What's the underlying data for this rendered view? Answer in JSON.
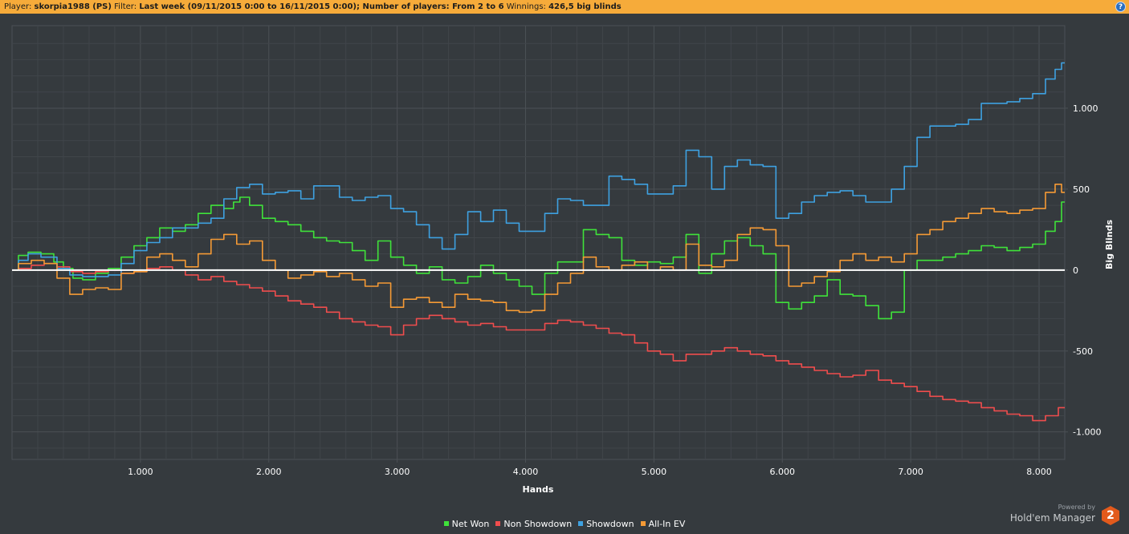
{
  "header": {
    "player_label": "Player:",
    "player_value": "skorpia1988 (PS)",
    "filter_label": "Filter:",
    "filter_value": "Last week (09/11/2015 0:00 to 16/11/2015 0:00); Number of players: From 2 to 6",
    "winnings_label": "Winnings:",
    "winnings_value": "426,5 big blinds",
    "help_icon": "?"
  },
  "branding": {
    "powered_by": "Powered by",
    "product": "Hold'em Manager",
    "logo_text": "2"
  },
  "colors": {
    "background": "#353a3e",
    "grid": "#4b5055",
    "zero_line": "#ffffff",
    "header_bar": "#f6ab3a"
  },
  "chart_data": {
    "type": "line",
    "xlabel": "Hands",
    "ylabel": "Big Blinds",
    "xlim": [
      0,
      8200
    ],
    "ylim": [
      -1170,
      1510
    ],
    "x_ticks": [
      1000,
      2000,
      3000,
      4000,
      5000,
      6000,
      7000,
      8000
    ],
    "x_tick_labels": [
      "1.000",
      "2.000",
      "3.000",
      "4.000",
      "5.000",
      "6.000",
      "7.000",
      "8.000"
    ],
    "y_ticks": [
      1000,
      500,
      0,
      -500,
      -1000
    ],
    "y_tick_labels": [
      "1.000",
      "500",
      "0",
      "-500",
      "-1.000"
    ],
    "grid": true,
    "legend_position": "bottom-center",
    "series": [
      {
        "name": "Net Won",
        "color": "#3fe23a",
        "x": [
          0,
          100,
          150,
          300,
          350,
          450,
          500,
          600,
          700,
          800,
          900,
          1000,
          1100,
          1200,
          1300,
          1400,
          1500,
          1600,
          1700,
          1750,
          1800,
          1900,
          2000,
          2100,
          2200,
          2300,
          2400,
          2500,
          2600,
          2700,
          2800,
          2900,
          3000,
          3100,
          3200,
          3300,
          3400,
          3500,
          3600,
          3700,
          3800,
          3900,
          4000,
          4100,
          4200,
          4300,
          4400,
          4500,
          4600,
          4700,
          4800,
          4900,
          5000,
          5100,
          5200,
          5300,
          5400,
          5500,
          5600,
          5700,
          5800,
          5900,
          6000,
          6100,
          6200,
          6300,
          6400,
          6500,
          6600,
          6700,
          6800,
          6900,
          7000,
          7100,
          7200,
          7300,
          7400,
          7500,
          7600,
          7700,
          7800,
          7900,
          8000,
          8100,
          8150,
          8200
        ],
        "y": [
          0,
          90,
          110,
          100,
          50,
          10,
          -50,
          -60,
          -20,
          10,
          80,
          150,
          200,
          260,
          240,
          280,
          350,
          400,
          380,
          420,
          450,
          400,
          320,
          300,
          280,
          240,
          200,
          180,
          170,
          120,
          60,
          180,
          80,
          30,
          -20,
          20,
          -60,
          -80,
          -40,
          30,
          -20,
          -60,
          -100,
          -150,
          -20,
          50,
          50,
          250,
          220,
          200,
          60,
          30,
          50,
          40,
          80,
          220,
          -20,
          100,
          180,
          200,
          150,
          100,
          -200,
          -240,
          -200,
          -160,
          -60,
          -150,
          -160,
          -220,
          -300,
          -260,
          0,
          60,
          60,
          80,
          100,
          120,
          150,
          140,
          120,
          140,
          160,
          240,
          300,
          420
        ]
      },
      {
        "name": "Non Showdown",
        "color": "#f04d4d",
        "x": [
          0,
          100,
          200,
          300,
          400,
          500,
          600,
          700,
          800,
          900,
          1000,
          1100,
          1200,
          1300,
          1400,
          1500,
          1600,
          1700,
          1800,
          1900,
          2000,
          2100,
          2200,
          2300,
          2400,
          2500,
          2600,
          2700,
          2800,
          2900,
          3000,
          3100,
          3200,
          3300,
          3400,
          3500,
          3600,
          3700,
          3800,
          3900,
          4000,
          4100,
          4200,
          4300,
          4400,
          4500,
          4600,
          4700,
          4800,
          4900,
          5000,
          5100,
          5200,
          5300,
          5400,
          5500,
          5600,
          5700,
          5800,
          5900,
          6000,
          6100,
          6200,
          6300,
          6400,
          6500,
          6600,
          6700,
          6800,
          6900,
          7000,
          7100,
          7200,
          7300,
          7400,
          7500,
          7600,
          7700,
          7800,
          7900,
          8000,
          8100,
          8200
        ],
        "y": [
          0,
          10,
          30,
          40,
          20,
          -10,
          -20,
          -10,
          0,
          -20,
          -10,
          10,
          20,
          0,
          -30,
          -60,
          -40,
          -70,
          -90,
          -110,
          -130,
          -160,
          -190,
          -210,
          -230,
          -260,
          -300,
          -320,
          -340,
          -350,
          -400,
          -340,
          -300,
          -280,
          -300,
          -320,
          -340,
          -330,
          -350,
          -370,
          -370,
          -370,
          -330,
          -310,
          -320,
          -340,
          -360,
          -390,
          -400,
          -450,
          -500,
          -520,
          -560,
          -520,
          -520,
          -500,
          -480,
          -500,
          -520,
          -530,
          -560,
          -580,
          -600,
          -620,
          -640,
          -660,
          -650,
          -620,
          -680,
          -700,
          -720,
          -750,
          -780,
          -800,
          -810,
          -820,
          -850,
          -870,
          -890,
          -900,
          -930,
          -900,
          -850
        ]
      },
      {
        "name": "Showdown",
        "color": "#3ea1e1",
        "x": [
          0,
          100,
          150,
          300,
          400,
          500,
          600,
          700,
          800,
          900,
          1000,
          1100,
          1200,
          1300,
          1400,
          1500,
          1600,
          1700,
          1800,
          1900,
          2000,
          2100,
          2200,
          2300,
          2400,
          2500,
          2600,
          2700,
          2800,
          2900,
          3000,
          3100,
          3200,
          3300,
          3400,
          3500,
          3600,
          3700,
          3800,
          3900,
          4000,
          4100,
          4200,
          4300,
          4400,
          4500,
          4600,
          4700,
          4800,
          4900,
          5000,
          5100,
          5200,
          5300,
          5400,
          5500,
          5600,
          5700,
          5800,
          5900,
          6000,
          6100,
          6200,
          6300,
          6400,
          6500,
          6600,
          6700,
          6800,
          6900,
          7000,
          7100,
          7200,
          7300,
          7400,
          7500,
          7600,
          7700,
          7800,
          7900,
          8000,
          8100,
          8150,
          8200
        ],
        "y": [
          0,
          60,
          100,
          80,
          10,
          -30,
          -40,
          -40,
          -30,
          40,
          120,
          170,
          200,
          260,
          260,
          290,
          320,
          440,
          510,
          530,
          470,
          480,
          490,
          440,
          520,
          520,
          450,
          430,
          450,
          460,
          380,
          360,
          280,
          200,
          130,
          220,
          360,
          300,
          370,
          290,
          240,
          240,
          350,
          440,
          430,
          400,
          400,
          580,
          560,
          530,
          470,
          470,
          520,
          740,
          700,
          500,
          640,
          680,
          650,
          640,
          320,
          350,
          420,
          460,
          480,
          490,
          460,
          420,
          420,
          500,
          640,
          820,
          890,
          890,
          900,
          930,
          1030,
          1030,
          1040,
          1060,
          1090,
          1180,
          1240,
          1280
        ]
      },
      {
        "name": "All-In EV",
        "color": "#f59a35",
        "x": [
          0,
          100,
          200,
          300,
          400,
          500,
          600,
          700,
          800,
          900,
          1000,
          1100,
          1200,
          1300,
          1400,
          1500,
          1600,
          1700,
          1800,
          1900,
          2000,
          2100,
          2200,
          2300,
          2400,
          2500,
          2600,
          2700,
          2800,
          2900,
          3000,
          3100,
          3200,
          3300,
          3400,
          3500,
          3600,
          3700,
          3800,
          3900,
          4000,
          4100,
          4200,
          4300,
          4400,
          4500,
          4600,
          4700,
          4800,
          4900,
          5000,
          5100,
          5200,
          5300,
          5400,
          5500,
          5600,
          5700,
          5800,
          5900,
          6000,
          6100,
          6200,
          6300,
          6400,
          6500,
          6600,
          6700,
          6800,
          6900,
          7000,
          7100,
          7200,
          7300,
          7400,
          7500,
          7600,
          7700,
          7800,
          7900,
          8000,
          8100,
          8150,
          8200
        ],
        "y": [
          0,
          40,
          60,
          40,
          -50,
          -150,
          -120,
          -110,
          -120,
          -20,
          -10,
          80,
          100,
          60,
          20,
          100,
          190,
          220,
          160,
          180,
          60,
          0,
          -50,
          -30,
          -10,
          -40,
          -20,
          -60,
          -100,
          -80,
          -230,
          -180,
          -170,
          -200,
          -230,
          -150,
          -180,
          -190,
          -200,
          -250,
          -260,
          -250,
          -150,
          -80,
          -20,
          80,
          20,
          0,
          30,
          50,
          0,
          20,
          0,
          160,
          30,
          20,
          60,
          220,
          260,
          250,
          150,
          -100,
          -80,
          -40,
          -10,
          60,
          100,
          60,
          80,
          50,
          100,
          220,
          250,
          300,
          320,
          350,
          380,
          360,
          350,
          370,
          380,
          480,
          530,
          480
        ]
      }
    ]
  }
}
